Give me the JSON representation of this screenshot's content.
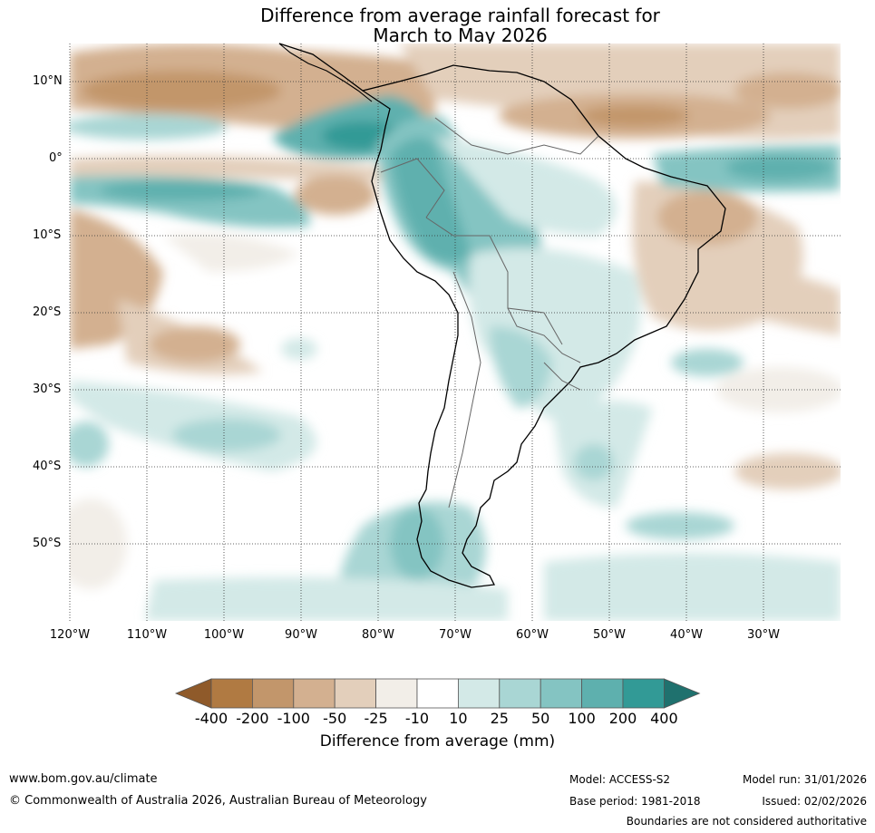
{
  "title_line1": "Difference from average rainfall forecast for",
  "title_line2": "March to May 2026",
  "map": {
    "region": "South America",
    "lat_labels": [
      "10°N",
      "0°",
      "10°S",
      "20°S",
      "30°S",
      "40°S",
      "50°S"
    ],
    "lon_labels": [
      "120°W",
      "110°W",
      "100°W",
      "90°W",
      "80°W",
      "70°W",
      "60°W",
      "50°W",
      "40°W",
      "30°W"
    ]
  },
  "colorbar": {
    "ticks": [
      "-400",
      "-200",
      "-100",
      "-50",
      "-25",
      "-10",
      "10",
      "25",
      "50",
      "100",
      "200",
      "400"
    ],
    "colors": [
      "#8f5a2a",
      "#b07a42",
      "#c2966b",
      "#d3b090",
      "#e3cfbb",
      "#f2eee8",
      "#ffffff",
      "#d3e9e7",
      "#a9d6d4",
      "#84c4c2",
      "#5eb0ae",
      "#329a96",
      "#1f716e"
    ],
    "label": "Difference from average (mm)"
  },
  "footer": {
    "url": "www.bom.gov.au/climate",
    "copyright": "© Commonwealth of Australia 2026, Australian Bureau of Meteorology",
    "model": "Model: ACCESS-S2",
    "model_run": "Model run: 31/01/2026",
    "base_period": "Base period: 1981-2018",
    "issued": "Issued: 02/02/2026",
    "disclaimer": "Boundaries are not considered authoritative"
  }
}
